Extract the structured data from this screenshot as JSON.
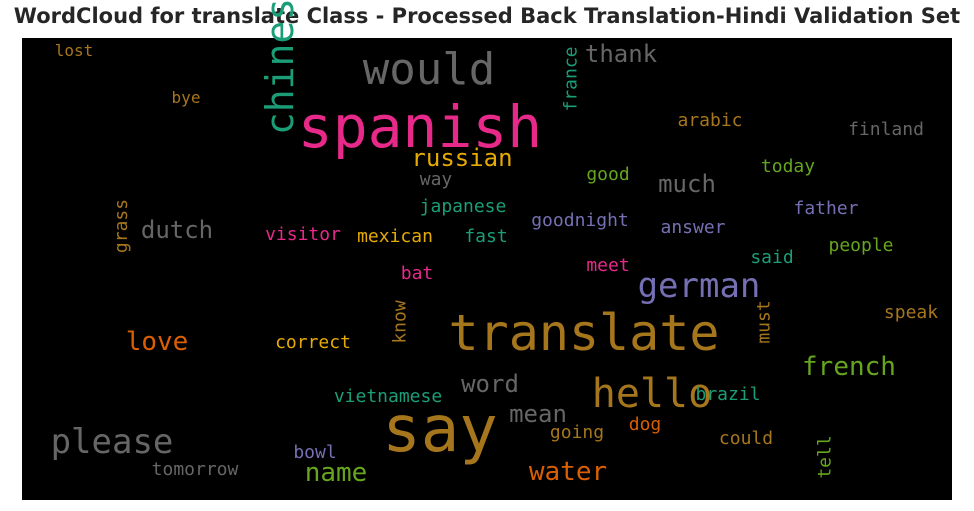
{
  "chart_data": {
    "type": "wordcloud",
    "title": "WordCloud for translate Class - Processed Back Translation-Hindi Validation Set",
    "background": "#000000",
    "words": [
      {
        "text": "lost",
        "color": "#a6761d"
      },
      {
        "text": "would",
        "color": "#666666"
      },
      {
        "text": "thank",
        "color": "#666666"
      },
      {
        "text": "chinese",
        "color": "#1b9e77"
      },
      {
        "text": "france",
        "color": "#1b9e77"
      },
      {
        "text": "bye",
        "color": "#a6761d"
      },
      {
        "text": "spanish",
        "color": "#e7298a"
      },
      {
        "text": "arabic",
        "color": "#a6761d"
      },
      {
        "text": "finland",
        "color": "#666666"
      },
      {
        "text": "russian",
        "color": "#e6ab02"
      },
      {
        "text": "good",
        "color": "#66a61e"
      },
      {
        "text": "today",
        "color": "#66a61e"
      },
      {
        "text": "way",
        "color": "#666666"
      },
      {
        "text": "much",
        "color": "#666666"
      },
      {
        "text": "japanese",
        "color": "#1b9e77"
      },
      {
        "text": "father",
        "color": "#7570b3"
      },
      {
        "text": "goodnight",
        "color": "#7570b3"
      },
      {
        "text": "grass",
        "color": "#a6761d"
      },
      {
        "text": "dutch",
        "color": "#666666"
      },
      {
        "text": "answer",
        "color": "#7570b3"
      },
      {
        "text": "visitor",
        "color": "#e7298a"
      },
      {
        "text": "mexican",
        "color": "#e6ab02"
      },
      {
        "text": "fast",
        "color": "#1b9e77"
      },
      {
        "text": "people",
        "color": "#66a61e"
      },
      {
        "text": "said",
        "color": "#1b9e77"
      },
      {
        "text": "bat",
        "color": "#e7298a"
      },
      {
        "text": "meet",
        "color": "#e7298a"
      },
      {
        "text": "german",
        "color": "#7570b3"
      },
      {
        "text": "translate",
        "color": "#a6761d"
      },
      {
        "text": "speak",
        "color": "#a6761d"
      },
      {
        "text": "love",
        "color": "#d95f02"
      },
      {
        "text": "correct",
        "color": "#e6ab02"
      },
      {
        "text": "know",
        "color": "#a6761d"
      },
      {
        "text": "must",
        "color": "#a6761d"
      },
      {
        "text": "french",
        "color": "#66a61e"
      },
      {
        "text": "word",
        "color": "#666666"
      },
      {
        "text": "hello",
        "color": "#a6761d"
      },
      {
        "text": "vietnamese",
        "color": "#1b9e77"
      },
      {
        "text": "brazil",
        "color": "#1b9e77"
      },
      {
        "text": "say",
        "color": "#a6761d"
      },
      {
        "text": "please",
        "color": "#666666"
      },
      {
        "text": "mean",
        "color": "#666666"
      },
      {
        "text": "going",
        "color": "#a6761d"
      },
      {
        "text": "dog",
        "color": "#d95f02"
      },
      {
        "text": "could",
        "color": "#a6761d"
      },
      {
        "text": "bowl",
        "color": "#7570b3"
      },
      {
        "text": "tomorrow",
        "color": "#666666"
      },
      {
        "text": "name",
        "color": "#66a61e"
      },
      {
        "text": "water",
        "color": "#d95f02"
      },
      {
        "text": "tell",
        "color": "#66a61e"
      }
    ]
  }
}
